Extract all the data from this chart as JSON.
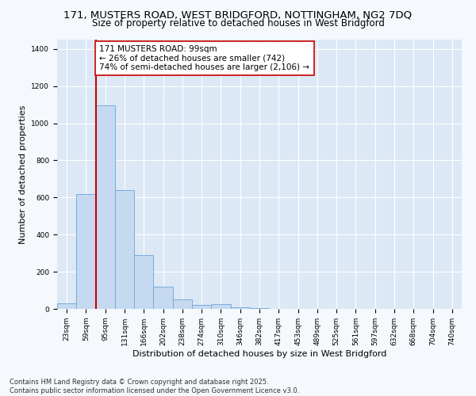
{
  "title_line1": "171, MUSTERS ROAD, WEST BRIDGFORD, NOTTINGHAM, NG2 7DQ",
  "title_line2": "Size of property relative to detached houses in West Bridgford",
  "xlabel": "Distribution of detached houses by size in West Bridgford",
  "ylabel": "Number of detached properties",
  "categories": [
    "23sqm",
    "59sqm",
    "95sqm",
    "131sqm",
    "166sqm",
    "202sqm",
    "238sqm",
    "274sqm",
    "310sqm",
    "346sqm",
    "382sqm",
    "417sqm",
    "453sqm",
    "489sqm",
    "525sqm",
    "561sqm",
    "597sqm",
    "632sqm",
    "668sqm",
    "704sqm",
    "740sqm"
  ],
  "values": [
    30,
    620,
    1095,
    640,
    290,
    120,
    50,
    20,
    25,
    10,
    5,
    0,
    0,
    0,
    0,
    0,
    0,
    0,
    0,
    0,
    0
  ],
  "bar_color": "#c5d9f0",
  "bar_edge_color": "#7aabdc",
  "vline_color": "#cc0000",
  "vline_x_index": 2,
  "annotation_text": "171 MUSTERS ROAD: 99sqm\n← 26% of detached houses are smaller (742)\n74% of semi-detached houses are larger (2,106) →",
  "annotation_box_color": "#ffffff",
  "annotation_box_edge_color": "#cc0000",
  "ylim": [
    0,
    1450
  ],
  "yticks": [
    0,
    200,
    400,
    600,
    800,
    1000,
    1200,
    1400
  ],
  "bg_color": "#dce8f5",
  "plot_bg_color": "#dce8f5",
  "fig_bg_color": "#f5f8fc",
  "grid_color": "#ffffff",
  "footer_line1": "Contains HM Land Registry data © Crown copyright and database right 2025.",
  "footer_line2": "Contains public sector information licensed under the Open Government Licence v3.0.",
  "title_fontsize": 9.5,
  "subtitle_fontsize": 8.5,
  "axis_label_fontsize": 8,
  "tick_fontsize": 6.5,
  "annotation_fontsize": 7.5,
  "footer_fontsize": 6
}
